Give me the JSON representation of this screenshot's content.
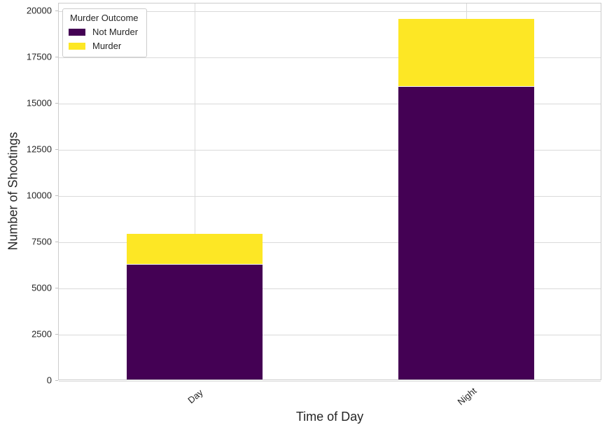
{
  "chart_data": {
    "type": "bar",
    "stacked": true,
    "xlabel": "Time of Day",
    "ylabel": "Number of Shootings",
    "categories": [
      "Day",
      "Night"
    ],
    "series": [
      {
        "name": "Not Murder",
        "color": "#440154",
        "values": [
          6200,
          15850
        ]
      },
      {
        "name": "Murder",
        "color": "#FDE725",
        "values": [
          1700,
          3650
        ]
      }
    ],
    "ylim": [
      0,
      20420
    ],
    "yticks": [
      0,
      2500,
      5000,
      7500,
      10000,
      12500,
      15000,
      17500,
      20000
    ],
    "grid": true,
    "bar_width_fraction": 0.5,
    "xtick_rotation": 45,
    "legend": {
      "title": "Murder Outcome",
      "position": "upper-left"
    }
  },
  "style": {
    "background": "#ffffff",
    "grid_color": "#dadada",
    "spine_color": "#cccccc",
    "text_color": "#262626",
    "segment_divider_color": "#ffffff"
  }
}
